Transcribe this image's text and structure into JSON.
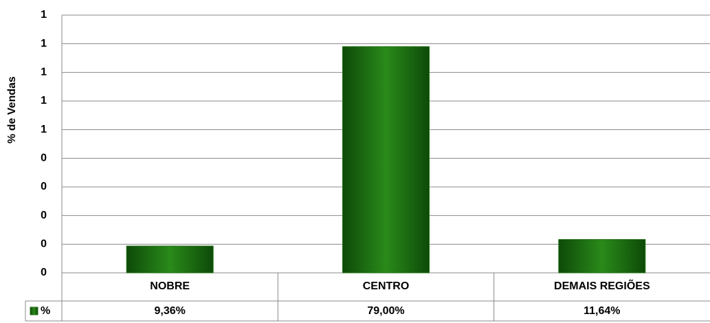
{
  "chart_data": {
    "type": "bar",
    "ylabel": "% de Vendas",
    "categories": [
      "NOBRE",
      "CENTRO",
      "DEMAIS REGIÕES"
    ],
    "series": [
      {
        "name": "%",
        "color": "#1f6e12",
        "values": [
          0.0936,
          0.79,
          0.1164
        ],
        "value_labels": [
          "9,36%",
          "79,00%",
          "11,64%"
        ]
      }
    ],
    "ylim": [
      0,
      0.9
    ],
    "yticks": [
      0,
      {
        "value": 0.1,
        "label": "0"
      },
      {
        "value": 0.2,
        "label": "0"
      },
      {
        "value": 0.3,
        "label": "0"
      },
      {
        "value": 0.4,
        "label": "0"
      },
      {
        "value": 0.5,
        "label": "1"
      },
      {
        "value": 0.6,
        "label": "1"
      },
      {
        "value": 0.7,
        "label": "1"
      },
      {
        "value": 0.8,
        "label": "1"
      },
      {
        "value": 0.9,
        "label": "1"
      }
    ],
    "grid": true
  }
}
